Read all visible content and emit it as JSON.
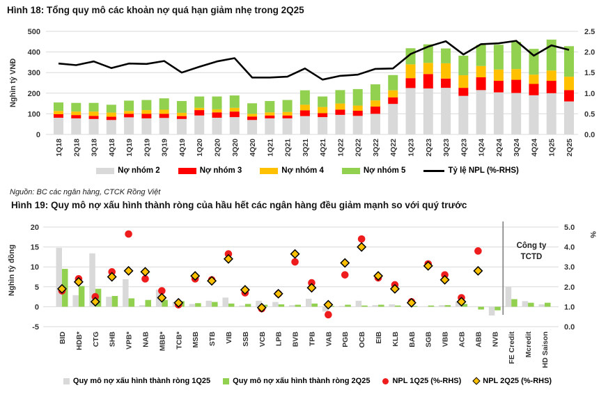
{
  "fig18": {
    "title": "Hình 18: Tổng quy mô các khoản nợ quá hạn giảm nhẹ trong 2Q25"
  },
  "source_note": "Nguồn: BC các ngân hàng, CTCK Rồng Việt",
  "fig19": {
    "title": "Hình 19: Quy mô nợ xấu hình thành ròng của hầu hết các ngân hàng đều giảm mạnh so với quý trước"
  },
  "colors": {
    "group2_gray": "#d9d9d9",
    "group3_red": "#ff0000",
    "group4_yellow": "#ffc000",
    "group5_green": "#92d050",
    "npl_line": "#000000",
    "scatter_red": "#ee1c1c",
    "scatter_diamond": "#ffc000",
    "gridline": "#d9d9d9",
    "axis_text": "#333333",
    "divider": "#808080"
  },
  "chart_data": [
    {
      "type": "bar",
      "subtype": "stacked-bar-with-line",
      "title": "Hình 18: Tổng quy mô các khoản nợ quá hạn giảm nhẹ trong 2Q25",
      "ylabel_left": "Nghìn tỷ VNĐ",
      "ylim_left": [
        0,
        500
      ],
      "yticks_left": {
        "values": [
          0,
          100,
          200,
          300,
          400,
          500
        ],
        "labels": [
          "0",
          "100",
          "200",
          "300",
          "400",
          "500"
        ]
      },
      "ylim_right": [
        0,
        2.5
      ],
      "yticks_right": {
        "values": [
          0,
          0.5,
          1.0,
          1.5,
          2.0,
          2.5
        ],
        "labels": [
          "0.0",
          "0.5",
          "1.0",
          "1.5",
          "2.0",
          "2.5"
        ]
      },
      "grid": true,
      "legend_position": "bottom",
      "categories": [
        "1Q18",
        "2Q18",
        "3Q18",
        "4Q18",
        "1Q19",
        "2Q19",
        "3Q19",
        "4Q19",
        "1Q20",
        "2Q20",
        "3Q20",
        "4Q20",
        "1Q21",
        "2Q21",
        "3Q21",
        "4Q21",
        "1Q22",
        "2Q22",
        "3Q22",
        "4Q22",
        "1Q23",
        "2Q23",
        "3Q23",
        "4Q23",
        "1Q24",
        "2Q24",
        "3Q24",
        "4Q24",
        "1Q25",
        "2Q25"
      ],
      "series": [
        {
          "name": "Nợ nhóm 2",
          "color": "#d9d9d9",
          "values": [
            81,
            78,
            75,
            70,
            83,
            78,
            80,
            75,
            92,
            81,
            84,
            70,
            78,
            78,
            89,
            84,
            95,
            90,
            100,
            148,
            225,
            223,
            226,
            187,
            215,
            204,
            201,
            190,
            200,
            160
          ]
        },
        {
          "name": "Nợ nhóm 3",
          "color": "#ff0000",
          "values": [
            17,
            16,
            15,
            16,
            17,
            22,
            20,
            14,
            26,
            26,
            27,
            17,
            14,
            14,
            28,
            19,
            25,
            25,
            35,
            32,
            48,
            70,
            45,
            39,
            62,
            56,
            64,
            55,
            60,
            55
          ]
        },
        {
          "name": "Nợ nhóm 4",
          "color": "#ffc000",
          "values": [
            16,
            17,
            21,
            20,
            14,
            18,
            20,
            16,
            11,
            15,
            18,
            13,
            15,
            17,
            27,
            30,
            30,
            25,
            30,
            34,
            67,
            54,
            74,
            61,
            55,
            55,
            52,
            45,
            50,
            65
          ]
        },
        {
          "name": "Nợ nhóm 5",
          "color": "#92d050",
          "values": [
            41,
            42,
            42,
            38,
            50,
            49,
            55,
            57,
            55,
            62,
            60,
            51,
            55,
            58,
            70,
            51,
            65,
            80,
            78,
            74,
            78,
            90,
            72,
            95,
            102,
            120,
            132,
            125,
            150,
            148
          ]
        }
      ],
      "line_series": {
        "name": "Tỷ lệ NPL (%-RHS)",
        "color": "#000000",
        "axis": "right",
        "values": [
          1.72,
          1.68,
          1.77,
          1.61,
          1.72,
          1.71,
          1.78,
          1.5,
          1.64,
          1.77,
          1.85,
          1.38,
          1.38,
          1.4,
          1.6,
          1.33,
          1.42,
          1.45,
          1.59,
          1.6,
          1.95,
          2.13,
          2.26,
          1.94,
          2.19,
          2.21,
          2.27,
          1.91,
          2.16,
          2.05
        ]
      }
    },
    {
      "type": "bar",
      "subtype": "grouped-bar-with-scatter",
      "title": "Hình 19: Quy mô nợ xấu hình thành ròng của hầu hết các ngân hàng đều giảm mạnh so với quý trước",
      "ylabel_left": "Nghìn tỷ đồng",
      "ylabel_right": "%",
      "ylim_left": [
        -5,
        20
      ],
      "yticks_left": {
        "values": [
          -5,
          0,
          5,
          10,
          15,
          20
        ],
        "labels": [
          "-5",
          "0",
          "5",
          "10",
          "15",
          "20"
        ]
      },
      "ylim_right": [
        0,
        5
      ],
      "yticks_right": {
        "values": [
          0,
          1,
          2,
          3,
          4,
          5
        ],
        "labels": [
          "0.0",
          "1.0",
          "2.0",
          "3.0",
          "4.0",
          "5.0"
        ]
      },
      "grid": true,
      "legend_position": "bottom",
      "annotation": {
        "lines": [
          "Công ty",
          "TCTD"
        ],
        "divider_after_category": "NVB"
      },
      "categories": [
        "BID",
        "HDB*",
        "CTG",
        "SHB",
        "VPB*",
        "NAB",
        "MBB*",
        "TCB*",
        "MSB",
        "STB",
        "VIB",
        "SSB",
        "VCB",
        "LPB",
        "BVB",
        "TPB",
        "VAB",
        "PGB",
        "OCB",
        "EIB",
        "KLB",
        "BAB",
        "SGB",
        "VBB",
        "ACB",
        "ABB",
        "NVB",
        "FE Credit",
        "Mcredit",
        "HD Saison"
      ],
      "series": [
        {
          "name": "Quy mô nợ xấu hình thành ròng 1Q25",
          "color": "#d9d9d9",
          "values": [
            14.8,
            2.9,
            13.4,
            2.5,
            6.9,
            0.4,
            4.3,
            1.2,
            0.7,
            1.5,
            2.3,
            0.3,
            1.5,
            1.2,
            0.4,
            2.0,
            -1.2,
            0.2,
            1.5,
            0.4,
            0.6,
            0.1,
            0.1,
            0.4,
            1.3,
            0.1,
            -2.2,
            5.0,
            1.4,
            0.6
          ]
        },
        {
          "name": "Quy mô nợ xấu hình thành ròng 2Q25",
          "color": "#92d050",
          "values": [
            9.5,
            5.2,
            4.5,
            2.7,
            2.1,
            1.7,
            1.7,
            1.4,
            0.9,
            1.2,
            0.8,
            0.7,
            0.5,
            0.6,
            0.5,
            0.8,
            0.2,
            0.5,
            0.3,
            0.5,
            0.3,
            0.2,
            0.3,
            0.4,
            0.7,
            -0.7,
            -0.9,
            1.9,
            1.0,
            1.0
          ]
        }
      ],
      "scatter_series": [
        {
          "name": "NPL 1Q25 (%-RHS)",
          "marker": "circle",
          "color": "#ee1c1c",
          "axis": "right",
          "values": [
            1.8,
            2.4,
            1.5,
            2.75,
            4.65,
            2.4,
            1.8,
            1.1,
            2.4,
            2.35,
            3.65,
            1.7,
            0.9,
            1.65,
            3.25,
            2.2,
            0.6,
            2.6,
            4.4,
            2.45,
            2.1,
            1.25,
            3.15,
            2.6,
            1.45,
            3.8,
            null,
            null,
            null,
            null
          ]
        },
        {
          "name": "NPL 2Q25 (%-RHS)",
          "marker": "diamond",
          "color": "#ffc000",
          "axis": "right",
          "values": [
            1.9,
            2.25,
            1.25,
            2.5,
            2.8,
            2.75,
            1.45,
            1.2,
            2.55,
            2.3,
            3.4,
            1.85,
            0.95,
            1.65,
            3.65,
            1.95,
            1.1,
            3.2,
            4.0,
            2.55,
            1.9,
            1.2,
            3.05,
            2.35,
            1.25,
            2.8,
            null,
            null,
            null,
            null
          ]
        }
      ]
    }
  ]
}
